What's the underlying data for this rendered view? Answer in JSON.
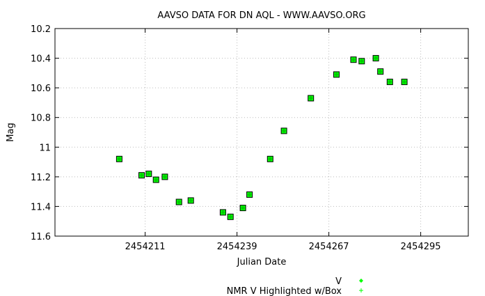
{
  "chart_data": {
    "type": "scatter",
    "title": "AAVSO DATA FOR DN AQL - WWW.AAVSO.ORG",
    "xlabel": "Julian Date",
    "ylabel": "Mag",
    "xlim": [
      2454183.5,
      2454309.5
    ],
    "ylim": [
      11.6,
      10.2
    ],
    "y_inverted": true,
    "x_ticks": [
      2454211,
      2454239,
      2454267,
      2454295
    ],
    "x_tick_labels": [
      "2454211",
      "2454239",
      "2454267",
      "2454295"
    ],
    "y_ticks": [
      10.2,
      10.4,
      10.6,
      10.8,
      11.0,
      11.2,
      11.4,
      11.6
    ],
    "y_tick_labels": [
      "10.2",
      "10.4",
      "10.6",
      "10.8",
      "11",
      "11.2",
      "11.4",
      "11.6"
    ],
    "grid": true,
    "legend_position": "bottom-right",
    "series": [
      {
        "name": "V",
        "color": "#00ff00",
        "marker": "diamond",
        "x": [
          2454203.1,
          2454209.9,
          2454212.1,
          2454214.3,
          2454217.0,
          2454221.3,
          2454224.9,
          2454234.7,
          2454237.0,
          2454240.8,
          2454242.8,
          2454249.1,
          2454253.3,
          2454261.5,
          2454269.3,
          2454274.5,
          2454277.0,
          2454281.3,
          2454282.7,
          2454285.6,
          2454290.0
        ],
        "y": [
          11.08,
          11.19,
          11.18,
          11.22,
          11.2,
          11.37,
          11.36,
          11.44,
          11.47,
          11.41,
          11.32,
          11.08,
          10.89,
          10.67,
          10.51,
          10.41,
          10.42,
          10.4,
          10.49,
          10.56,
          10.56
        ]
      },
      {
        "name": "NMR V Highlighted w/Box",
        "color": "#00ff00",
        "marker": "plus",
        "x": [],
        "y": []
      }
    ]
  }
}
